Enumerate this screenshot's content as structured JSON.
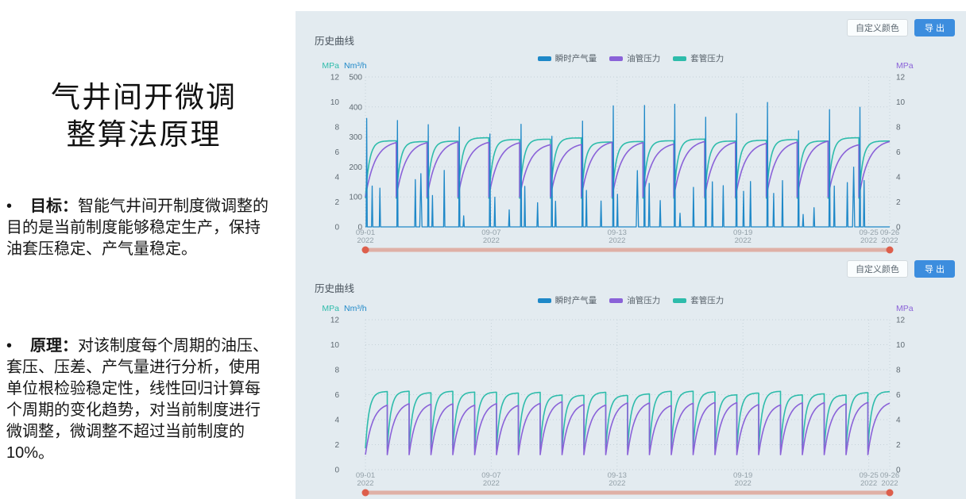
{
  "slide": {
    "title_lines": [
      "气井间开微调",
      "整算法原理"
    ],
    "bullets": [
      {
        "marker": "•",
        "label": "目标：",
        "text": "智能气井间开制度微调整的目的是当前制度能够稳定生产，保持油套压稳定、产气量稳定。"
      },
      {
        "marker": "•",
        "label": "原理：",
        "text": "对该制度每个周期的油压、套压、压差、产气量进行分析，使用单位根检验稳定性，线性回归计算每个周期的变化趋势，对当前制度进行微调整，微调整不超过当前制度的10%。"
      }
    ]
  },
  "colors": {
    "panel_bg": "#e3ebf0",
    "accent_blue": "#3c8dde",
    "grid": "#c6d2d9",
    "tick_text": "#5f6a72",
    "date_text": "#93a0a8"
  },
  "chart_data": [
    {
      "type": "line",
      "title": "历史曲线",
      "buttons": {
        "custom_color": "自定义颜色",
        "export": "导 出"
      },
      "legend": [
        {
          "label": "瞬时产气量",
          "color": "#1e88c8"
        },
        {
          "label": "油管压力",
          "color": "#8a62d8"
        },
        {
          "label": "套管压力",
          "color": "#2ebcab"
        }
      ],
      "axes": {
        "left_mpa": {
          "label": "MPa",
          "color": "#2ebcab",
          "min": 0,
          "max": 12,
          "ticks": [
            12,
            10,
            8,
            6,
            4,
            2,
            0
          ]
        },
        "left_nm3h": {
          "label": "Nm³/h",
          "color": "#1e88c8",
          "min": 0,
          "max": 500,
          "ticks": [
            500,
            400,
            300,
            200,
            100,
            0
          ]
        },
        "right_mpa": {
          "label": "MPa",
          "color": "#8a62d8",
          "min": 0,
          "max": 12,
          "ticks": [
            12,
            10,
            8,
            6,
            4,
            2,
            0
          ]
        }
      },
      "grid_axis": "left_nm3h",
      "x_ticks": [
        {
          "date": "09-01",
          "year": "2022",
          "pos": 0.0
        },
        {
          "date": "09-07",
          "year": "2022",
          "pos": 0.24
        },
        {
          "date": "09-13",
          "year": "2022",
          "pos": 0.48
        },
        {
          "date": "09-19",
          "year": "2022",
          "pos": 0.72
        },
        {
          "date": "09-25",
          "year": "2022",
          "pos": 0.96
        },
        {
          "date": "09-26",
          "year": "2022",
          "pos": 1.0
        }
      ],
      "series": [
        {
          "id": "gas",
          "name": "瞬时产气量",
          "color": "#1e88c8",
          "axis": "left_nm3h",
          "kind": "spikes",
          "cycles": 17,
          "tall_min": 290,
          "tall_max": 425,
          "small_max": 250,
          "width": 1.3,
          "seed": 11
        },
        {
          "id": "tubing",
          "name": "油管压力",
          "color": "#8a62d8",
          "axis": "left_mpa",
          "kind": "recovery",
          "cycles": 17,
          "min": 2.4,
          "max": 6.9,
          "k": 3.2,
          "width": 1.6,
          "seed": 21
        },
        {
          "id": "casing",
          "name": "套管压力",
          "color": "#2ebcab",
          "axis": "left_mpa",
          "kind": "recovery",
          "cycles": 17,
          "min": 2.3,
          "max": 7.15,
          "k": 8,
          "width": 1.6,
          "seed": 31
        }
      ],
      "slider": {
        "track_color": "#dfb0a6",
        "handle_color": "#dd5f4c"
      }
    },
    {
      "type": "line",
      "title": "历史曲线",
      "buttons": {
        "custom_color": "自定义颜色",
        "export": "导 出"
      },
      "legend": [
        {
          "label": "瞬时产气量",
          "color": "#1e88c8"
        },
        {
          "label": "油管压力",
          "color": "#8a62d8"
        },
        {
          "label": "套管压力",
          "color": "#2ebcab"
        }
      ],
      "axes": {
        "left_mpa": {
          "label": "MPa",
          "color": "#2ebcab",
          "min": 0,
          "max": 12,
          "ticks": [
            12,
            10,
            8,
            6,
            4,
            2,
            0
          ]
        },
        "left_nm3h": {
          "label": "Nm³/h",
          "color": "#1e88c8",
          "min": 0,
          "max": 500,
          "ticks": []
        },
        "right_mpa": {
          "label": "MPa",
          "color": "#8a62d8",
          "min": 0,
          "max": 12,
          "ticks": [
            12,
            10,
            8,
            6,
            4,
            2,
            0
          ]
        }
      },
      "grid_axis": "left_mpa",
      "x_ticks": [
        {
          "date": "09-01",
          "year": "2022",
          "pos": 0.0
        },
        {
          "date": "09-07",
          "year": "2022",
          "pos": 0.24
        },
        {
          "date": "09-13",
          "year": "2022",
          "pos": 0.48
        },
        {
          "date": "09-19",
          "year": "2022",
          "pos": 0.72
        },
        {
          "date": "09-25",
          "year": "2022",
          "pos": 0.96
        },
        {
          "date": "09-26",
          "year": "2022",
          "pos": 1.0
        }
      ],
      "series": [
        {
          "id": "gas",
          "name": "瞬时产气量",
          "color": "#1e88c8",
          "axis": "left_nm3h",
          "kind": "none",
          "visible": false
        },
        {
          "id": "tubing",
          "name": "油管压力",
          "color": "#8a62d8",
          "axis": "left_mpa",
          "kind": "recovery",
          "cycles": 24,
          "min": 1.2,
          "max": 5.45,
          "k": 3.0,
          "width": 1.6,
          "seed": 41
        },
        {
          "id": "casing",
          "name": "套管压力",
          "color": "#2ebcab",
          "axis": "left_mpa",
          "kind": "recovery",
          "cycles": 24,
          "min": 1.7,
          "max": 6.3,
          "k": 6,
          "width": 1.6,
          "seed": 51
        }
      ],
      "slider": {
        "track_color": "#dfb0a6",
        "handle_color": "#dd5f4c"
      }
    }
  ]
}
